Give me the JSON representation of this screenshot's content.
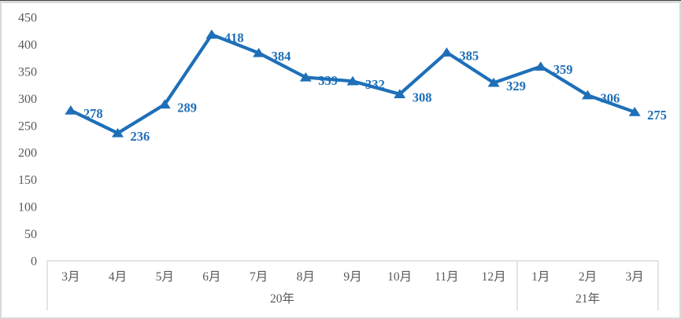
{
  "chart_data": {
    "type": "line",
    "title": "",
    "categories": [
      "3月",
      "4月",
      "5月",
      "6月",
      "7月",
      "8月",
      "9月",
      "10月",
      "11月",
      "12月",
      "1月",
      "2月",
      "3月"
    ],
    "values": [
      278,
      236,
      289,
      418,
      384,
      339,
      332,
      308,
      385,
      329,
      359,
      306,
      275
    ],
    "year_groups": [
      {
        "label": "20年",
        "start": 0,
        "count": 10
      },
      {
        "label": "21年",
        "start": 10,
        "count": 3
      }
    ],
    "y_ticks": [
      0,
      50,
      100,
      150,
      200,
      250,
      300,
      350,
      400,
      450
    ],
    "ylim": [
      0,
      450
    ],
    "xlabel": "",
    "ylabel": "",
    "grid": false,
    "legend": false,
    "marker": "triangle-up",
    "data_labels_visible": true,
    "colors": {
      "line": "#1E6FB8",
      "marker": "#1E6FB8",
      "data_label": "#1E6FB8",
      "axis_text": "#595959",
      "axis_line": "#D9D9D9",
      "frame_border": "#D9D9D9",
      "background": "#FFFFFF"
    }
  }
}
